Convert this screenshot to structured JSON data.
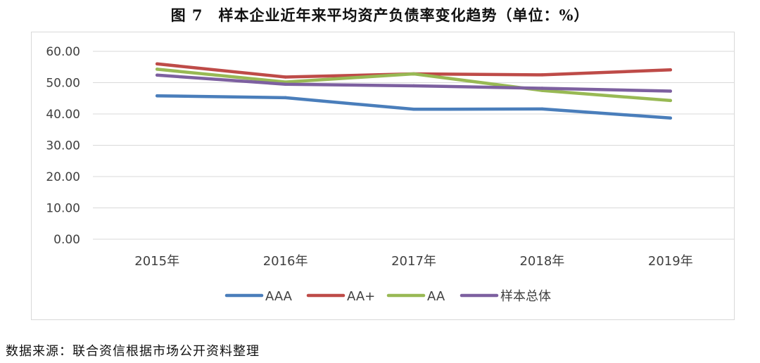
{
  "title": "图 7　样本企业近年来平均资产负债率变化趋势（单位：%）",
  "source": "数据来源：联合资信根据市场公开资料整理",
  "chart_data": {
    "type": "line",
    "title": "图 7　样本企业近年来平均资产负债率变化趋势（单位：%）",
    "xlabel": "",
    "ylabel": "",
    "categories": [
      "2015年",
      "2016年",
      "2017年",
      "2018年",
      "2019年"
    ],
    "ylim": [
      0,
      60
    ],
    "yticks": [
      0,
      10,
      20,
      30,
      40,
      50,
      60
    ],
    "ytick_labels": [
      "0.00",
      "10.00",
      "20.00",
      "30.00",
      "40.00",
      "50.00",
      "60.00"
    ],
    "grid": true,
    "legend_position": "bottom",
    "series": [
      {
        "name": "AAA",
        "color": "#4a7ebb",
        "values": [
          45.8,
          45.2,
          41.5,
          41.6,
          38.7
        ]
      },
      {
        "name": "AA+",
        "color": "#be4b48",
        "values": [
          56.0,
          51.8,
          52.8,
          52.5,
          54.1
        ]
      },
      {
        "name": "AA",
        "color": "#98b954",
        "values": [
          54.3,
          50.2,
          52.8,
          47.5,
          44.3
        ]
      },
      {
        "name": "样本总体",
        "color": "#7d60a0",
        "values": [
          52.4,
          49.5,
          49.0,
          48.2,
          47.3
        ]
      }
    ]
  }
}
